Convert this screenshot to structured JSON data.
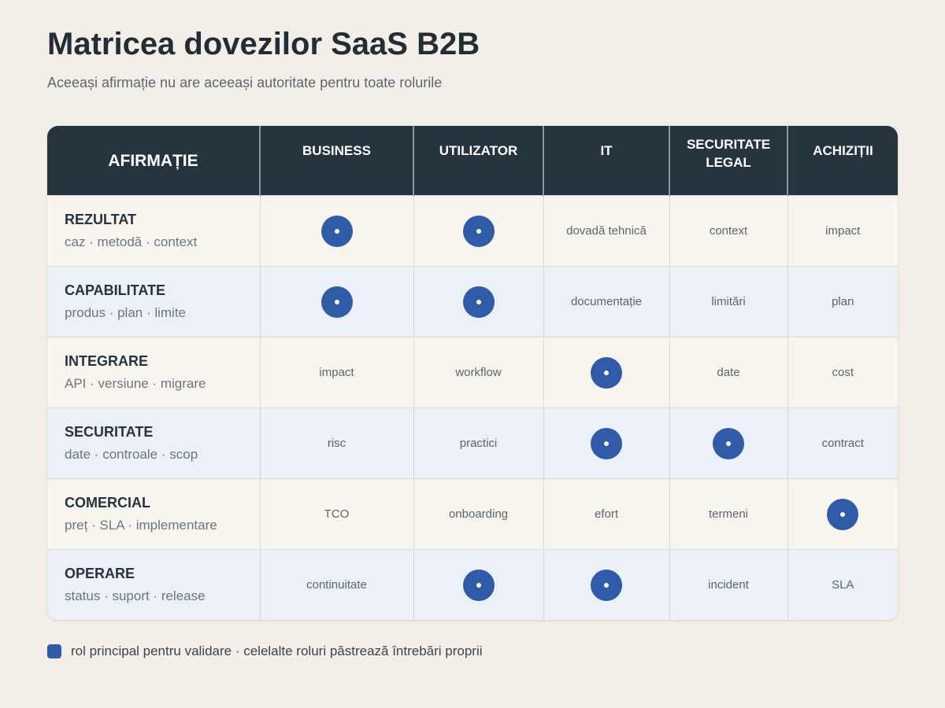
{
  "title": "Matricea dovezilor SaaS B2B",
  "subtitle": "Aceeași afirmație nu are aceeași autoritate pentru toate rolurile",
  "colors": {
    "accent": "#2f5ba8",
    "header_bg": "#26343e",
    "row_odd": "#f8f5ef",
    "row_even": "#ecf1f8"
  },
  "columns": [
    "AFIRMAȚIE",
    "BUSINESS",
    "UTILIZATOR",
    "IT",
    "SECURITATE\nLEGAL",
    "ACHIZIȚII"
  ],
  "primary_marker_icon": "filled-circle-dot-icon",
  "rows": [
    {
      "claim": "REZULTAT",
      "details": "caz · metodă · context",
      "cells": [
        {
          "primary": true
        },
        {
          "primary": true
        },
        {
          "text": "dovadă tehnică"
        },
        {
          "text": "context"
        },
        {
          "text": "impact"
        }
      ]
    },
    {
      "claim": "CAPABILITATE",
      "details": "produs · plan · limite",
      "cells": [
        {
          "primary": true
        },
        {
          "primary": true
        },
        {
          "text": "documentație"
        },
        {
          "text": "limitări"
        },
        {
          "text": "plan"
        }
      ]
    },
    {
      "claim": "INTEGRARE",
      "details": "API · versiune · migrare",
      "cells": [
        {
          "text": "impact"
        },
        {
          "text": "workflow"
        },
        {
          "primary": true
        },
        {
          "text": "date"
        },
        {
          "text": "cost"
        }
      ]
    },
    {
      "claim": "SECURITATE",
      "details": "date · controale · scop",
      "cells": [
        {
          "text": "risc"
        },
        {
          "text": "practici"
        },
        {
          "primary": true
        },
        {
          "primary": true
        },
        {
          "text": "contract"
        }
      ]
    },
    {
      "claim": "COMERCIAL",
      "details": "preț · SLA · implementare",
      "cells": [
        {
          "text": "TCO"
        },
        {
          "text": "onboarding"
        },
        {
          "text": "efort"
        },
        {
          "text": "termeni"
        },
        {
          "primary": true
        }
      ]
    },
    {
      "claim": "OPERARE",
      "details": "status · suport · release",
      "cells": [
        {
          "text": "continuitate"
        },
        {
          "primary": true
        },
        {
          "primary": true
        },
        {
          "text": "incident"
        },
        {
          "text": "SLA"
        }
      ]
    }
  ],
  "legend": {
    "text": "rol principal pentru validare · celelalte roluri păstrează întrebări proprii"
  }
}
